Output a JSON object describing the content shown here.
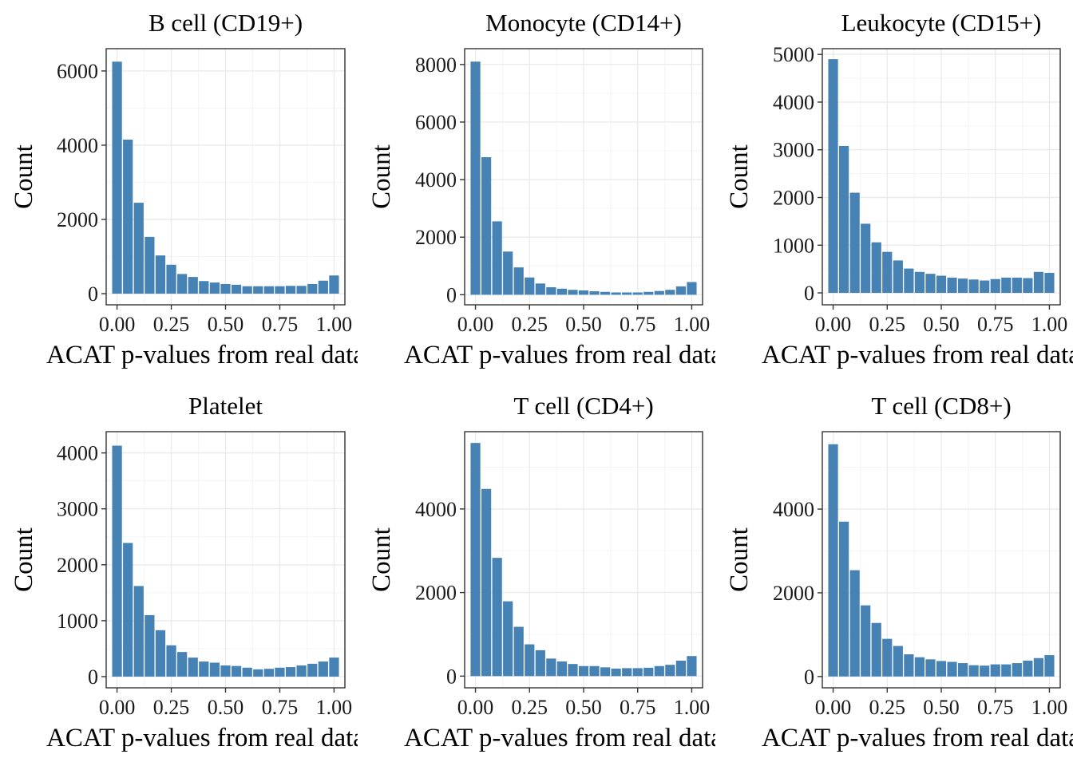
{
  "figure": {
    "bar_color": "#4682B4",
    "background": "#ffffff",
    "grid_color": "#ebebeb"
  },
  "chart_data": [
    {
      "type": "bar",
      "title": "B cell (CD19+)",
      "xlabel": "ACAT p-values from real data",
      "ylabel": "Count",
      "xlim": [
        -0.05,
        1.05
      ],
      "ylim": [
        -300,
        6600
      ],
      "xticks": [
        "0.00",
        "0.25",
        "0.50",
        "0.75",
        "1.00"
      ],
      "yticks": [
        0,
        2000,
        4000,
        6000
      ],
      "ytick_labels": [
        "0",
        "2000",
        "4000",
        "6000"
      ],
      "x": [
        0.0,
        0.05,
        0.1,
        0.15,
        0.2,
        0.25,
        0.3,
        0.35,
        0.4,
        0.45,
        0.5,
        0.55,
        0.6,
        0.65,
        0.7,
        0.75,
        0.8,
        0.85,
        0.9,
        0.95,
        1.0
      ],
      "values": [
        6250,
        4150,
        2450,
        1530,
        1030,
        780,
        530,
        450,
        340,
        300,
        260,
        240,
        200,
        200,
        200,
        200,
        210,
        210,
        260,
        350,
        490
      ]
    },
    {
      "type": "bar",
      "title": "Monocyte (CD14+)",
      "xlabel": "ACAT p-values from real data",
      "ylabel": "Count",
      "xlim": [
        -0.05,
        1.05
      ],
      "ylim": [
        -350,
        8550
      ],
      "xticks": [
        "0.00",
        "0.25",
        "0.50",
        "0.75",
        "1.00"
      ],
      "yticks": [
        0,
        2000,
        4000,
        6000,
        8000
      ],
      "ytick_labels": [
        "0",
        "2000",
        "4000",
        "6000",
        "8000"
      ],
      "x": [
        0.0,
        0.05,
        0.1,
        0.15,
        0.2,
        0.25,
        0.3,
        0.35,
        0.4,
        0.45,
        0.5,
        0.55,
        0.6,
        0.65,
        0.7,
        0.75,
        0.8,
        0.85,
        0.9,
        0.95,
        1.0
      ],
      "values": [
        8100,
        4780,
        2550,
        1500,
        950,
        600,
        390,
        260,
        210,
        170,
        150,
        120,
        100,
        80,
        80,
        80,
        100,
        130,
        170,
        290,
        440
      ]
    },
    {
      "type": "bar",
      "title": "Leukocyte (CD15+)",
      "xlabel": "ACAT p-values from real data",
      "ylabel": "Count",
      "xlim": [
        -0.05,
        1.05
      ],
      "ylim": [
        -250,
        5120
      ],
      "xticks": [
        "0.00",
        "0.25",
        "0.50",
        "0.75",
        "1.00"
      ],
      "yticks": [
        0,
        1000,
        2000,
        3000,
        4000,
        5000
      ],
      "ytick_labels": [
        "0",
        "1000",
        "2000",
        "3000",
        "4000",
        "5000"
      ],
      "x": [
        0.0,
        0.05,
        0.1,
        0.15,
        0.2,
        0.25,
        0.3,
        0.35,
        0.4,
        0.45,
        0.5,
        0.55,
        0.6,
        0.65,
        0.7,
        0.75,
        0.8,
        0.85,
        0.9,
        0.95,
        1.0
      ],
      "values": [
        4900,
        3080,
        2100,
        1450,
        1060,
        860,
        680,
        510,
        440,
        400,
        360,
        320,
        300,
        280,
        260,
        290,
        320,
        320,
        310,
        440,
        420
      ]
    },
    {
      "type": "bar",
      "title": "Platelet",
      "xlabel": "ACAT p-values from real data",
      "ylabel": "Count",
      "xlim": [
        -0.05,
        1.05
      ],
      "ylim": [
        -200,
        4380
      ],
      "xticks": [
        "0.00",
        "0.25",
        "0.50",
        "0.75",
        "1.00"
      ],
      "yticks": [
        0,
        1000,
        2000,
        3000,
        4000
      ],
      "ytick_labels": [
        "0",
        "1000",
        "2000",
        "3000",
        "4000"
      ],
      "x": [
        0.0,
        0.05,
        0.1,
        0.15,
        0.2,
        0.25,
        0.3,
        0.35,
        0.4,
        0.45,
        0.5,
        0.55,
        0.6,
        0.65,
        0.7,
        0.75,
        0.8,
        0.85,
        0.9,
        0.95,
        1.0
      ],
      "values": [
        4130,
        2390,
        1620,
        1100,
        830,
        560,
        440,
        340,
        270,
        250,
        200,
        190,
        160,
        130,
        140,
        160,
        170,
        200,
        230,
        270,
        340
      ]
    },
    {
      "type": "bar",
      "title": "T cell (CD4+)",
      "xlabel": "ACAT p-values from real data",
      "ylabel": "Count",
      "xlim": [
        -0.05,
        1.05
      ],
      "ylim": [
        -280,
        5850
      ],
      "xticks": [
        "0.00",
        "0.25",
        "0.50",
        "0.75",
        "1.00"
      ],
      "yticks": [
        0,
        2000,
        4000
      ],
      "ytick_labels": [
        "0",
        "2000",
        "4000"
      ],
      "x": [
        0.0,
        0.05,
        0.1,
        0.15,
        0.2,
        0.25,
        0.3,
        0.35,
        0.4,
        0.45,
        0.5,
        0.55,
        0.6,
        0.65,
        0.7,
        0.75,
        0.8,
        0.85,
        0.9,
        0.95,
        1.0
      ],
      "values": [
        5580,
        4480,
        2830,
        1790,
        1180,
        760,
        620,
        420,
        350,
        290,
        240,
        240,
        210,
        180,
        190,
        190,
        200,
        240,
        270,
        370,
        480
      ]
    },
    {
      "type": "bar",
      "title": "T cell (CD8+)",
      "xlabel": "ACAT p-values from real data",
      "ylabel": "Count",
      "xlim": [
        -0.05,
        1.05
      ],
      "ylim": [
        -270,
        5850
      ],
      "xticks": [
        "0.00",
        "0.25",
        "0.50",
        "0.75",
        "1.00"
      ],
      "yticks": [
        0,
        2000,
        4000
      ],
      "ytick_labels": [
        "0",
        "2000",
        "4000"
      ],
      "x": [
        0.0,
        0.05,
        0.1,
        0.15,
        0.2,
        0.25,
        0.3,
        0.35,
        0.4,
        0.45,
        0.5,
        0.55,
        0.6,
        0.65,
        0.7,
        0.75,
        0.8,
        0.85,
        0.9,
        0.95,
        1.0
      ],
      "values": [
        5550,
        3700,
        2540,
        1700,
        1280,
        900,
        730,
        530,
        460,
        410,
        370,
        350,
        320,
        270,
        260,
        290,
        290,
        320,
        380,
        440,
        510
      ]
    }
  ]
}
